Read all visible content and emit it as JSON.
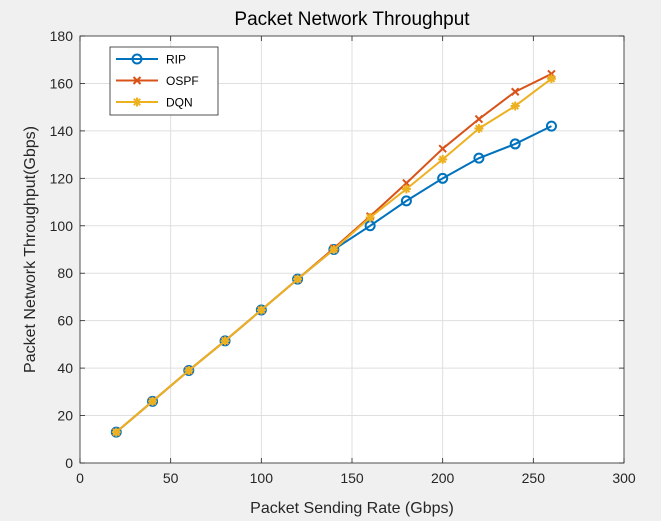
{
  "chart_data": {
    "type": "line",
    "title": "Packet Network Throughput",
    "xlabel": "Packet Sending Rate (Gbps)",
    "ylabel": "Packet Network Throughput(Gbps)",
    "xlim": [
      0,
      300
    ],
    "ylim": [
      0,
      180
    ],
    "xticks": [
      0,
      50,
      100,
      150,
      200,
      250,
      300
    ],
    "yticks": [
      0,
      20,
      40,
      60,
      80,
      100,
      120,
      140,
      160,
      180
    ],
    "grid": true,
    "legend_position": "top-left",
    "x": [
      20,
      40,
      60,
      80,
      100,
      120,
      140,
      160,
      180,
      200,
      220,
      240,
      260
    ],
    "series": [
      {
        "name": "RIP",
        "color": "#0072BD",
        "marker": "circle",
        "values": [
          13,
          26,
          39,
          51.5,
          64.5,
          77.5,
          90,
          100,
          110.5,
          120,
          128.5,
          134.5,
          142
        ]
      },
      {
        "name": "OSPF",
        "color": "#D95319",
        "marker": "x",
        "values": [
          13,
          26,
          39,
          51.5,
          64.5,
          77.5,
          90.5,
          104,
          118,
          132.5,
          145,
          156.5,
          164
        ]
      },
      {
        "name": "DQN",
        "color": "#EDB120",
        "marker": "asterisk",
        "values": [
          13,
          26,
          39,
          51.5,
          64.5,
          77.5,
          90,
          103.5,
          115.5,
          128,
          141,
          150.5,
          162
        ]
      }
    ]
  }
}
